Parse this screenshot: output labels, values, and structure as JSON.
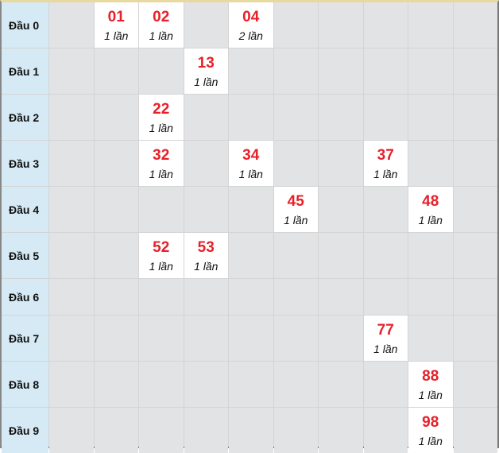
{
  "count_suffix": "lần",
  "colors": {
    "number": "#e8202a",
    "label_bg": "#d6eaf5",
    "empty_bg": "#e2e3e5"
  },
  "rows": [
    {
      "label": "Đầu 0",
      "cells": [
        null,
        {
          "num": "01",
          "count": "1 lần"
        },
        {
          "num": "02",
          "count": "1 lần"
        },
        null,
        {
          "num": "04",
          "count": "2 lần"
        },
        null,
        null,
        null,
        null,
        null
      ]
    },
    {
      "label": "Đầu 1",
      "cells": [
        null,
        null,
        null,
        {
          "num": "13",
          "count": "1 lần"
        },
        null,
        null,
        null,
        null,
        null,
        null
      ]
    },
    {
      "label": "Đầu 2",
      "cells": [
        null,
        null,
        {
          "num": "22",
          "count": "1 lần"
        },
        null,
        null,
        null,
        null,
        null,
        null,
        null
      ]
    },
    {
      "label": "Đầu 3",
      "cells": [
        null,
        null,
        {
          "num": "32",
          "count": "1 lần"
        },
        null,
        {
          "num": "34",
          "count": "1 lần"
        },
        null,
        null,
        {
          "num": "37",
          "count": "1 lần"
        },
        null,
        null
      ]
    },
    {
      "label": "Đầu 4",
      "cells": [
        null,
        null,
        null,
        null,
        null,
        {
          "num": "45",
          "count": "1 lần"
        },
        null,
        null,
        {
          "num": "48",
          "count": "1 lần"
        },
        null
      ]
    },
    {
      "label": "Đầu 5",
      "cells": [
        null,
        null,
        {
          "num": "52",
          "count": "1 lần"
        },
        {
          "num": "53",
          "count": "1 lần"
        },
        null,
        null,
        null,
        null,
        null,
        null
      ]
    },
    {
      "label": "Đầu 6",
      "cells": [
        null,
        null,
        null,
        null,
        null,
        null,
        null,
        null,
        null,
        null
      ]
    },
    {
      "label": "Đầu 7",
      "cells": [
        null,
        null,
        null,
        null,
        null,
        null,
        null,
        {
          "num": "77",
          "count": "1 lần"
        },
        null,
        null
      ]
    },
    {
      "label": "Đầu 8",
      "cells": [
        null,
        null,
        null,
        null,
        null,
        null,
        null,
        null,
        {
          "num": "88",
          "count": "1 lần"
        },
        null
      ]
    },
    {
      "label": "Đầu 9",
      "cells": [
        null,
        null,
        null,
        null,
        null,
        null,
        null,
        null,
        {
          "num": "98",
          "count": "1 lần"
        },
        null
      ]
    }
  ]
}
